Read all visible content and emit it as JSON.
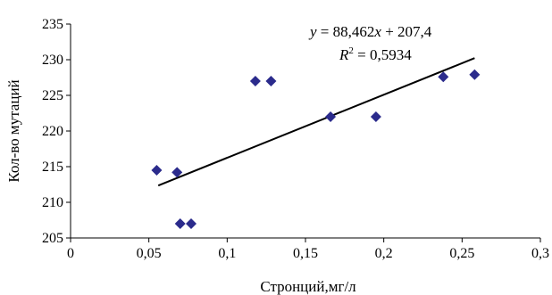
{
  "chart_data": {
    "type": "scatter",
    "title": "",
    "xlabel": "Стронций,мг/л",
    "ylabel": "Кол-во мутаций",
    "xlim": [
      0,
      0.3
    ],
    "ylim": [
      205,
      235
    ],
    "x_ticks": [
      "0",
      "0,05",
      "0,1",
      "0,15",
      "0,2",
      "0,25",
      "0,3"
    ],
    "y_ticks": [
      "205",
      "210",
      "215",
      "220",
      "225",
      "230",
      "235"
    ],
    "grid": false,
    "legend": "none",
    "marker_color": "#2b2b8c",
    "trendline_color": "#000000",
    "points": [
      {
        "x": 0.055,
        "y": 214.5
      },
      {
        "x": 0.068,
        "y": 214.2
      },
      {
        "x": 0.07,
        "y": 207
      },
      {
        "x": 0.077,
        "y": 207
      },
      {
        "x": 0.118,
        "y": 227
      },
      {
        "x": 0.128,
        "y": 227
      },
      {
        "x": 0.166,
        "y": 222
      },
      {
        "x": 0.195,
        "y": 222
      },
      {
        "x": 0.238,
        "y": 227.6
      },
      {
        "x": 0.258,
        "y": 227.9
      }
    ],
    "trendline": {
      "slope": 88.462,
      "intercept": 207.4,
      "x_range": [
        0.056,
        0.258
      ],
      "equation_lhs": "y",
      "equation_rhs": " = 88,462x + 207,4",
      "equation_rhs_part1": " = 88,462",
      "equation_rhs_var": "x",
      "equation_rhs_part2": " + 207,4",
      "r2_label": "R",
      "r2_exp": "2",
      "r2_value": " = 0,5934"
    }
  }
}
